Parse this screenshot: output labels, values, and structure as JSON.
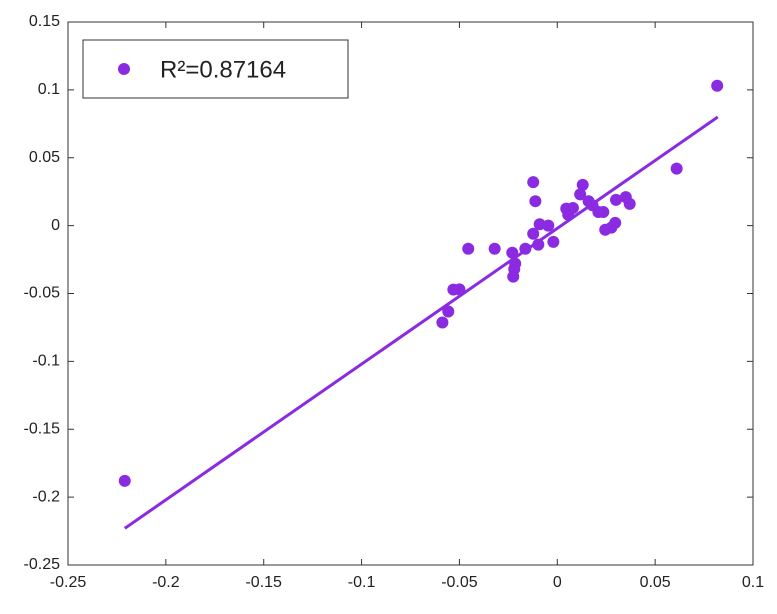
{
  "chart_data": {
    "type": "scatter",
    "xlim": [
      -0.25,
      0.1
    ],
    "xticks": [
      -0.25,
      -0.2,
      -0.15,
      -0.1,
      -0.05,
      0,
      0.05,
      0.1
    ],
    "ylim": [
      -0.25,
      0.15
    ],
    "yticks": [
      -0.25,
      -0.2,
      -0.15,
      -0.1,
      -0.05,
      0,
      0.05,
      0.1,
      0.15
    ],
    "legend": "top-left",
    "series": [
      {
        "name": "R²=0.87164",
        "color": "#8a2be2",
        "x": [
          -0.221,
          0.0817,
          0.061,
          -0.0587,
          -0.0557,
          -0.0531,
          -0.05,
          -0.0455,
          -0.032,
          -0.023,
          -0.022,
          -0.0225,
          -0.0215,
          -0.0163,
          -0.0123,
          -0.0112,
          -0.0123,
          -0.0097,
          -0.009,
          -0.0046,
          -0.002,
          0.0046,
          0.0056,
          0.008,
          0.0117,
          0.013,
          0.016,
          0.018,
          0.021,
          0.0235,
          0.0245,
          0.0276,
          0.0296,
          0.03,
          0.035,
          0.037
        ],
        "values": [
          -0.188,
          0.103,
          0.042,
          -0.0714,
          -0.0633,
          -0.0471,
          -0.047,
          -0.017,
          -0.017,
          -0.02,
          -0.032,
          -0.0376,
          -0.028,
          -0.017,
          0.032,
          0.018,
          -0.006,
          -0.014,
          0.001,
          0,
          -0.012,
          0.0125,
          0.008,
          0.013,
          0.023,
          0.03,
          0.018,
          0.015,
          0.01,
          0.01,
          -0.003,
          -0.0015,
          0.002,
          0.019,
          0.021,
          0.016
        ]
      }
    ],
    "fit": {
      "color": "#8a2be2",
      "x": [
        -0.221,
        0.082
      ],
      "values": [
        -0.223,
        0.08
      ]
    }
  }
}
